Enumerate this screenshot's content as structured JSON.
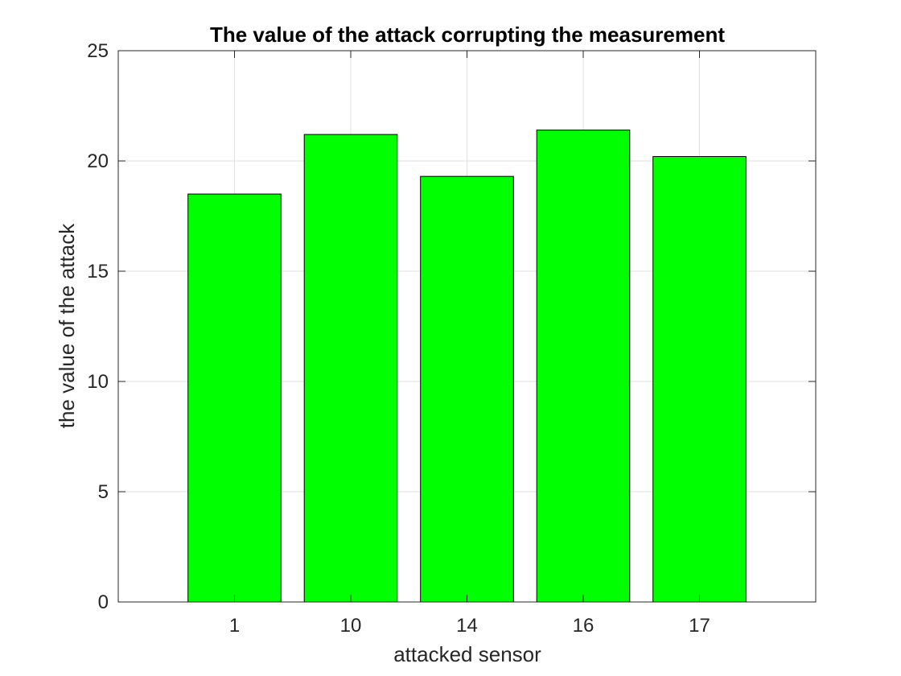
{
  "chart_data": {
    "type": "bar",
    "title": "The value of the attack corrupting the measurement",
    "xlabel": "attacked sensor",
    "ylabel": "the value of the attack",
    "categories": [
      "1",
      "10",
      "14",
      "16",
      "17"
    ],
    "values": [
      18.5,
      21.2,
      19.3,
      21.4,
      20.2
    ],
    "ylim": [
      0,
      25
    ],
    "yticks": [
      "0",
      "5",
      "10",
      "15",
      "20",
      "25"
    ],
    "grid": true,
    "legend": "none",
    "bar_color": "#00ff00",
    "bar_edge_color": "#000000"
  }
}
